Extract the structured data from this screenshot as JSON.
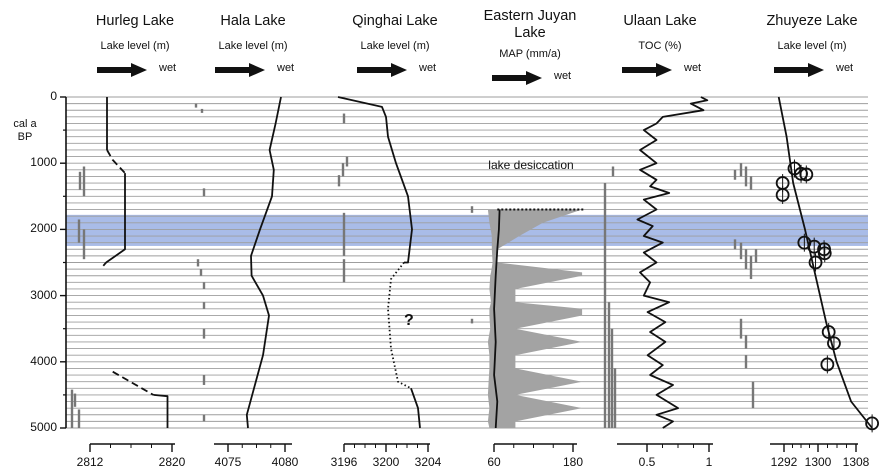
{
  "chart_data": {
    "type": "line",
    "y_axis": {
      "unit_line1": "cal a",
      "unit_line2": "BP",
      "ylim": [
        0,
        5000
      ],
      "ticks": [
        "0",
        "1000",
        "2000",
        "3000",
        "4000",
        "5000"
      ],
      "tick_values": [
        0,
        1000,
        2000,
        3000,
        4000,
        5000
      ]
    },
    "highlight_band": {
      "from": 1780,
      "to": 2250,
      "color": "#a9bce8"
    },
    "panels": [
      {
        "title": "Hurleg Lake",
        "ylabel": "Lake level (m)",
        "direction": "wet",
        "xlim": [
          2810,
          2821
        ],
        "xticks": [
          "2812",
          "2820"
        ],
        "xtick_values": [
          2812,
          2820
        ],
        "series": [
          {
            "style": "solid",
            "points": [
              [
                2813.6,
                0
              ],
              [
                2813.6,
                800
              ]
            ]
          },
          {
            "style": "dashed",
            "points": [
              [
                2813.6,
                800
              ],
              [
                2814.2,
                950
              ],
              [
                2815.5,
                1150
              ]
            ]
          },
          {
            "style": "solid",
            "points": [
              [
                2815.5,
                1150
              ],
              [
                2815.5,
                2300
              ],
              [
                2813.5,
                2500
              ]
            ]
          },
          {
            "style": "dashed",
            "points": [
              [
                2813.5,
                2500
              ],
              [
                2813.2,
                2550
              ]
            ]
          },
          {
            "style": "dashed",
            "points": [
              [
                2814.2,
                4150
              ],
              [
                2818.5,
                4500
              ]
            ]
          },
          {
            "style": "solid",
            "points": [
              [
                2818.5,
                4500
              ],
              [
                2820,
                4520
              ],
              [
                2820,
                5000
              ]
            ]
          }
        ],
        "dating_marks": [
          [
            4480,
            4680
          ],
          [
            4720,
            5000
          ],
          [
            4420,
            5000
          ],
          [
            1050,
            1500
          ],
          [
            1130,
            1400
          ],
          [
            2000,
            2450
          ],
          [
            1850,
            2200
          ]
        ]
      },
      {
        "title": "Hala Lake",
        "ylabel": "Lake level (m)",
        "direction": "wet",
        "xlim": [
          4067,
          4083
        ],
        "xticks": [
          "4075",
          "4080"
        ],
        "xtick_values": [
          4075,
          4080
        ],
        "series": [
          {
            "style": "solid",
            "points": [
              [
                4080.5,
                0
              ],
              [
                4079.6,
                400
              ],
              [
                4078.6,
                800
              ],
              [
                4079.3,
                1100
              ],
              [
                4079,
                1500
              ],
              [
                4077,
                2000
              ],
              [
                4075.5,
                2400
              ],
              [
                4075.6,
                2700
              ],
              [
                4077.5,
                3000
              ],
              [
                4078.5,
                3300
              ],
              [
                4077.5,
                3900
              ],
              [
                4076,
                4400
              ],
              [
                4074.8,
                4800
              ],
              [
                4075,
                5000
              ]
            ]
          }
        ],
        "dating_marks": [
          [
            100,
            160
          ],
          [
            180,
            240
          ],
          [
            1380,
            1500
          ],
          [
            2450,
            2560
          ],
          [
            2600,
            2700
          ],
          [
            2800,
            2900
          ],
          [
            3100,
            3200
          ],
          [
            3500,
            3650
          ],
          [
            4200,
            4350
          ],
          [
            4800,
            4900
          ]
        ]
      },
      {
        "title": "Qinghai Lake",
        "ylabel": "Lake level (m)",
        "direction": "wet",
        "xlim": [
          3195,
          3205
        ],
        "xticks": [
          "3196",
          "3200",
          "3204"
        ],
        "xtick_values": [
          3196,
          3200,
          3204
        ],
        "series": [
          {
            "style": "solid",
            "points": [
              [
                3195.2,
                0
              ],
              [
                3199.6,
                150
              ],
              [
                3200,
                300
              ],
              [
                3200.2,
                600
              ],
              [
                3201,
                1000
              ],
              [
                3202.2,
                1500
              ],
              [
                3202.6,
                2000
              ],
              [
                3202.2,
                2500
              ],
              [
                3201.8,
                2500
              ]
            ]
          },
          {
            "style": "dotted",
            "points": [
              [
                3201.8,
                2500
              ],
              [
                3200.5,
                2750
              ],
              [
                3200.2,
                3200
              ],
              [
                3200.5,
                3800
              ],
              [
                3201.2,
                4300
              ],
              [
                3202.5,
                4400
              ]
            ]
          },
          {
            "style": "solid",
            "points": [
              [
                3202.5,
                4400
              ],
              [
                3203.2,
                4700
              ],
              [
                3203.4,
                5000
              ]
            ]
          }
        ],
        "annotation": "?",
        "dating_marks": [
          [
            250,
            400
          ],
          [
            1000,
            1200
          ],
          [
            1180,
            1350
          ],
          [
            900,
            1050
          ],
          [
            1750,
            2400
          ],
          [
            2450,
            2800
          ],
          [
            5000,
            5000
          ]
        ]
      },
      {
        "title": "Eastern Juyan Lake",
        "ylabel": "MAP (mm/a)",
        "direction": "wet",
        "xlim": [
          50,
          190
        ],
        "xticks": [
          "60",
          "180"
        ],
        "xtick_values": [
          60,
          180
        ],
        "annotation": "lake desiccation",
        "range_band": {
          "y": [
            1700,
            1900,
            2100,
            2300,
            2500,
            2650,
            2700,
            2900,
            3100,
            3200,
            3300,
            3500,
            3700,
            3900,
            4100,
            4300,
            4500,
            4700,
            4900,
            5000
          ],
          "low": [
            60,
            62,
            65,
            65,
            66,
            64,
            63,
            62,
            64,
            62,
            62,
            63,
            60,
            62,
            62,
            61,
            60,
            62,
            60,
            62
          ],
          "high": [
            180,
            130,
            100,
            72,
            72,
            180,
            180,
            95,
            95,
            180,
            180,
            95,
            180,
            95,
            95,
            180,
            95,
            180,
            95,
            95
          ]
        },
        "series": [
          {
            "style": "solid",
            "points": [
              [
                75,
                1700
              ],
              [
                74,
                2000
              ],
              [
                72,
                2300
              ],
              [
                70,
                2700
              ],
              [
                68,
                3200
              ],
              [
                70,
                3700
              ],
              [
                68,
                4200
              ],
              [
                72,
                4600
              ],
              [
                70,
                5000
              ]
            ]
          }
        ],
        "dating_marks": [
          [
            1650,
            1750
          ],
          [
            3350,
            3420
          ]
        ]
      },
      {
        "title": "Ulaan Lake",
        "ylabel": "TOC (%)",
        "direction": "wet",
        "xlim": [
          0.2,
          1.05
        ],
        "xticks": [
          "0.5",
          "1"
        ],
        "xtick_values": [
          0.5,
          1
        ],
        "series": [
          {
            "style": "solid",
            "points": [
              [
                0.9,
                0
              ],
              [
                0.95,
                50
              ],
              [
                0.82,
                100
              ],
              [
                0.92,
                200
              ],
              [
                0.6,
                300
              ],
              [
                0.55,
                400
              ],
              [
                0.45,
                500
              ],
              [
                0.55,
                650
              ],
              [
                0.42,
                800
              ],
              [
                0.55,
                1000
              ],
              [
                0.42,
                1100
              ],
              [
                0.55,
                1250
              ],
              [
                0.5,
                1350
              ],
              [
                0.65,
                1450
              ],
              [
                0.45,
                1550
              ],
              [
                0.55,
                1700
              ],
              [
                0.4,
                1850
              ],
              [
                0.52,
                1950
              ],
              [
                0.45,
                2100
              ],
              [
                0.6,
                2200
              ],
              [
                0.45,
                2350
              ],
              [
                0.55,
                2500
              ],
              [
                0.42,
                2650
              ],
              [
                0.5,
                2800
              ],
              [
                0.45,
                3000
              ],
              [
                0.65,
                3100
              ],
              [
                0.48,
                3250
              ],
              [
                0.62,
                3400
              ],
              [
                0.5,
                3550
              ],
              [
                0.62,
                3700
              ],
              [
                0.48,
                3900
              ],
              [
                0.6,
                4050
              ],
              [
                0.5,
                4200
              ],
              [
                0.68,
                4350
              ],
              [
                0.55,
                4500
              ],
              [
                0.72,
                4700
              ],
              [
                0.55,
                4800
              ],
              [
                0.68,
                4900
              ],
              [
                0.6,
                5000
              ]
            ]
          }
        ],
        "dating_marks": [
          [
            1050,
            1200
          ],
          [
            1300,
            5000
          ],
          [
            3100,
            5000
          ],
          [
            3500,
            5000
          ],
          [
            4100,
            5000
          ]
        ]
      },
      {
        "title": "Zhuyeze Lake",
        "ylabel": "Lake level (m)",
        "direction": "wet",
        "xlim": [
          1290,
          1309
        ],
        "xticks": [
          "1292",
          "1300",
          "1308"
        ],
        "xtick_values": [
          1292,
          1300,
          1308
        ],
        "series": [
          {
            "style": "solid",
            "points": [
              [
                1293.6,
                0
              ],
              [
                1294.8,
                600
              ],
              [
                1295.8,
                1300
              ],
              [
                1297.6,
                2000
              ],
              [
                1299.2,
                2700
              ],
              [
                1300.8,
                3400
              ],
              [
                1302.4,
                4000
              ],
              [
                1304.6,
                4600
              ],
              [
                1307.8,
                5000
              ]
            ]
          }
        ],
        "points": [
          {
            "x": 1296,
            "y": 1080
          },
          {
            "x": 1297,
            "y": 1160
          },
          {
            "x": 1297.8,
            "y": 1170
          },
          {
            "x": 1294.2,
            "y": 1300
          },
          {
            "x": 1294.2,
            "y": 1480
          },
          {
            "x": 1297.5,
            "y": 2200
          },
          {
            "x": 1299,
            "y": 2260
          },
          {
            "x": 1300.5,
            "y": 2300
          },
          {
            "x": 1300.6,
            "y": 2360
          },
          {
            "x": 1299.2,
            "y": 2500
          },
          {
            "x": 1301.2,
            "y": 3550
          },
          {
            "x": 1302,
            "y": 3720
          },
          {
            "x": 1301,
            "y": 4040
          },
          {
            "x": 1307.8,
            "y": 4930
          }
        ],
        "dating_marks": [
          [
            1000,
            1200
          ],
          [
            1050,
            1350
          ],
          [
            1100,
            1250
          ],
          [
            1200,
            1400
          ],
          [
            2150,
            2300
          ],
          [
            2200,
            2450
          ],
          [
            2300,
            2600
          ],
          [
            2400,
            2750
          ],
          [
            2300,
            2500
          ],
          [
            3350,
            3650
          ],
          [
            3600,
            3800
          ],
          [
            3900,
            4100
          ],
          [
            4300,
            4700
          ]
        ]
      }
    ]
  }
}
